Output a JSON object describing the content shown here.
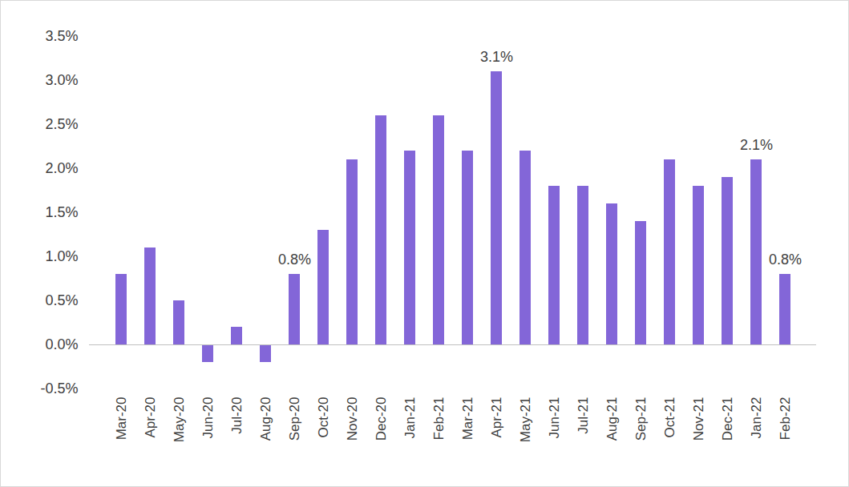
{
  "chart_data": {
    "type": "bar",
    "categories": [
      "Mar-20",
      "Apr-20",
      "May-20",
      "Jun-20",
      "Jul-20",
      "Aug-20",
      "Sep-20",
      "Oct-20",
      "Nov-20",
      "Dec-20",
      "Jan-21",
      "Feb-21",
      "Mar-21",
      "Apr-21",
      "May-21",
      "Jun-21",
      "Jul-21",
      "Aug-21",
      "Sep-21",
      "Oct-21",
      "Nov-21",
      "Dec-21",
      "Jan-22",
      "Feb-22"
    ],
    "values": [
      0.8,
      1.1,
      0.5,
      -0.2,
      0.2,
      -0.2,
      0.8,
      1.3,
      2.1,
      2.6,
      2.2,
      2.6,
      2.2,
      3.1,
      2.2,
      1.8,
      1.8,
      1.6,
      1.4,
      2.1,
      1.8,
      1.9,
      2.1,
      0.8
    ],
    "value_labels": [
      null,
      null,
      null,
      null,
      null,
      null,
      "0.8%",
      null,
      null,
      null,
      null,
      null,
      null,
      "3.1%",
      null,
      null,
      null,
      null,
      null,
      null,
      null,
      null,
      "2.1%",
      "0.8%"
    ],
    "data_labels": true,
    "color": "#8366d8",
    "ylim": [
      -0.5,
      3.5
    ],
    "yticks": [
      {
        "value": -0.5,
        "label": "-0.5%"
      },
      {
        "value": 0,
        "label": "0.0%"
      },
      {
        "value": 0.5,
        "label": "0.5%"
      },
      {
        "value": 1,
        "label": "1.0%"
      },
      {
        "value": 1.5,
        "label": "1.5%"
      },
      {
        "value": 2,
        "label": "2.0%"
      },
      {
        "value": 2.5,
        "label": "2.5%"
      },
      {
        "value": 3,
        "label": "3.0%"
      },
      {
        "value": 3.5,
        "label": "3.5%"
      }
    ],
    "grid": false
  }
}
